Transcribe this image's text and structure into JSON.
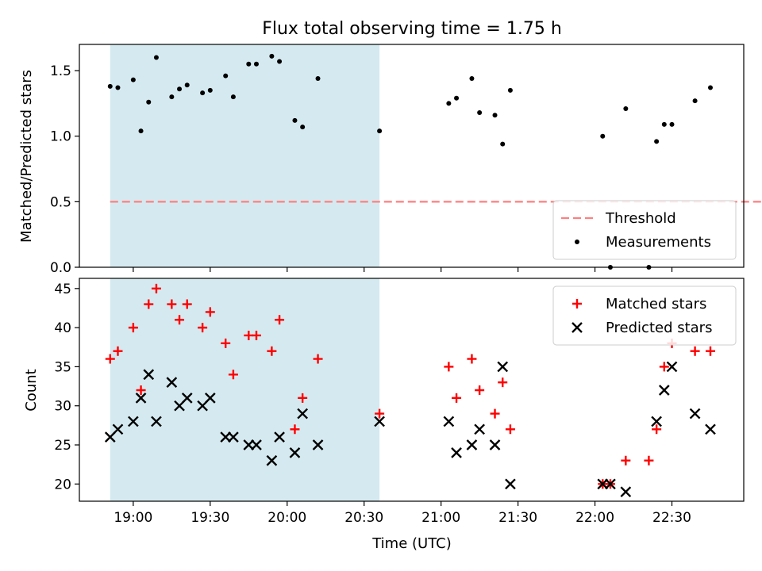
{
  "chart_data": {
    "type": "scatter",
    "title": "Flux total observing time = 1.75 h",
    "xlabel": "Time (UTC)",
    "x_ticks": [
      "19:00",
      "19:30",
      "20:00",
      "20:30",
      "21:00",
      "21:30",
      "22:00",
      "22:30"
    ],
    "shaded_interval": [
      "18:51",
      "20:36"
    ],
    "shade_color": "#d5eaf0",
    "panels": [
      {
        "id": "ratio",
        "ylabel": "Matched/Predicted stars",
        "ylim": [
          0.0,
          1.7
        ],
        "y_ticks": [
          "0.0",
          "0.5",
          "1.0",
          "1.5"
        ],
        "legend_position": "lower right",
        "threshold": {
          "name": "Threshold",
          "value": 0.5,
          "x_range": [
            "18:51",
            "23:10"
          ],
          "color": "#ff7f7f"
        },
        "series": [
          {
            "name": "Measurements",
            "marker": "dot",
            "color": "#000000",
            "points": [
              [
                "18:51",
                1.38
              ],
              [
                "18:54",
                1.37
              ],
              [
                "19:00",
                1.43
              ],
              [
                "19:03",
                1.04
              ],
              [
                "19:06",
                1.26
              ],
              [
                "19:09",
                1.6
              ],
              [
                "19:15",
                1.3
              ],
              [
                "19:18",
                1.36
              ],
              [
                "19:21",
                1.39
              ],
              [
                "19:27",
                1.33
              ],
              [
                "19:30",
                1.35
              ],
              [
                "19:36",
                1.46
              ],
              [
                "19:39",
                1.3
              ],
              [
                "19:45",
                1.55
              ],
              [
                "19:48",
                1.55
              ],
              [
                "19:54",
                1.61
              ],
              [
                "19:57",
                1.57
              ],
              [
                "20:03",
                1.12
              ],
              [
                "20:06",
                1.07
              ],
              [
                "20:12",
                1.44
              ],
              [
                "20:36",
                1.04
              ],
              [
                "21:03",
                1.25
              ],
              [
                "21:06",
                1.29
              ],
              [
                "21:12",
                1.44
              ],
              [
                "21:15",
                1.18
              ],
              [
                "21:21",
                1.16
              ],
              [
                "21:24",
                0.94
              ],
              [
                "21:27",
                1.35
              ],
              [
                "22:03",
                1.0
              ],
              [
                "22:06",
                0.0
              ],
              [
                "22:12",
                1.21
              ],
              [
                "22:21",
                0.0
              ],
              [
                "22:24",
                0.96
              ],
              [
                "22:27",
                1.09
              ],
              [
                "22:30",
                1.09
              ],
              [
                "22:39",
                1.27
              ],
              [
                "22:45",
                1.37
              ]
            ]
          }
        ]
      },
      {
        "id": "counts",
        "ylabel": "Count",
        "ylim": [
          17.8,
          46.3
        ],
        "y_ticks": [
          "20",
          "25",
          "30",
          "35",
          "40",
          "45"
        ],
        "legend_position": "upper right",
        "series": [
          {
            "name": "Matched stars",
            "marker": "plus",
            "color": "#ff0000",
            "points": [
              [
                "18:51",
                36
              ],
              [
                "18:54",
                37
              ],
              [
                "19:00",
                40
              ],
              [
                "19:03",
                32
              ],
              [
                "19:06",
                43
              ],
              [
                "19:09",
                45
              ],
              [
                "19:15",
                43
              ],
              [
                "19:18",
                41
              ],
              [
                "19:21",
                43
              ],
              [
                "19:27",
                40
              ],
              [
                "19:30",
                42
              ],
              [
                "19:36",
                38
              ],
              [
                "19:39",
                34
              ],
              [
                "19:45",
                39
              ],
              [
                "19:48",
                39
              ],
              [
                "19:54",
                37
              ],
              [
                "19:57",
                41
              ],
              [
                "20:03",
                27
              ],
              [
                "20:06",
                31
              ],
              [
                "20:12",
                36
              ],
              [
                "20:36",
                29
              ],
              [
                "21:03",
                35
              ],
              [
                "21:06",
                31
              ],
              [
                "21:12",
                36
              ],
              [
                "21:15",
                32
              ],
              [
                "21:21",
                29
              ],
              [
                "21:24",
                33
              ],
              [
                "21:27",
                27
              ],
              [
                "22:03",
                20
              ],
              [
                "22:06",
                20
              ],
              [
                "22:12",
                23
              ],
              [
                "22:21",
                23
              ],
              [
                "22:24",
                27
              ],
              [
                "22:27",
                35
              ],
              [
                "22:30",
                38
              ],
              [
                "22:39",
                37
              ],
              [
                "22:45",
                37
              ]
            ]
          },
          {
            "name": "Predicted stars",
            "marker": "x",
            "color": "#000000",
            "points": [
              [
                "18:51",
                26
              ],
              [
                "18:54",
                27
              ],
              [
                "19:00",
                28
              ],
              [
                "19:03",
                31
              ],
              [
                "19:06",
                34
              ],
              [
                "19:09",
                28
              ],
              [
                "19:15",
                33
              ],
              [
                "19:18",
                30
              ],
              [
                "19:21",
                31
              ],
              [
                "19:27",
                30
              ],
              [
                "19:30",
                31
              ],
              [
                "19:36",
                26
              ],
              [
                "19:39",
                26
              ],
              [
                "19:45",
                25
              ],
              [
                "19:48",
                25
              ],
              [
                "19:54",
                23
              ],
              [
                "19:57",
                26
              ],
              [
                "20:03",
                24
              ],
              [
                "20:06",
                29
              ],
              [
                "20:12",
                25
              ],
              [
                "20:36",
                28
              ],
              [
                "21:03",
                28
              ],
              [
                "21:06",
                24
              ],
              [
                "21:12",
                25
              ],
              [
                "21:15",
                27
              ],
              [
                "21:21",
                25
              ],
              [
                "21:24",
                35
              ],
              [
                "21:27",
                20
              ],
              [
                "22:03",
                20
              ],
              [
                "22:06",
                20
              ],
              [
                "22:12",
                19
              ],
              [
                "22:24",
                28
              ],
              [
                "22:27",
                32
              ],
              [
                "22:30",
                35
              ],
              [
                "22:39",
                29
              ],
              [
                "22:45",
                27
              ]
            ]
          }
        ]
      }
    ]
  }
}
